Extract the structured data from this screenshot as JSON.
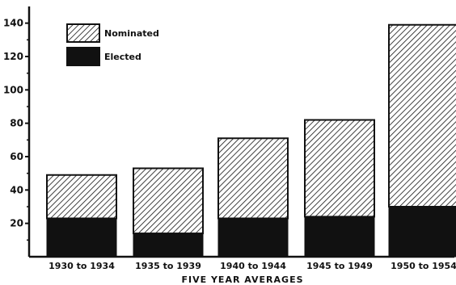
{
  "chart_data": {
    "type": "bar",
    "stacked": true,
    "title": "",
    "xlabel": "FIVE YEAR AVERAGES",
    "ylabel": "",
    "categories": [
      "1930 to 1934",
      "1935 to 1939",
      "1940 to 1944",
      "1945 to 1949",
      "1950 to 1954"
    ],
    "series": [
      {
        "name": "Elected",
        "values": [
          23,
          14,
          23,
          24,
          30
        ],
        "color": "#111111",
        "pattern": "solid"
      },
      {
        "name": "Nominated",
        "values": [
          26,
          39,
          48,
          58,
          109
        ],
        "color": "#111111",
        "pattern": "diagonal-hatch"
      }
    ],
    "yticks": [
      20,
      40,
      60,
      80,
      100,
      120,
      140
    ],
    "ylim": [
      0,
      150
    ],
    "grid": false,
    "legend": {
      "position": "top-left",
      "order": [
        "Nominated",
        "Elected"
      ]
    }
  }
}
